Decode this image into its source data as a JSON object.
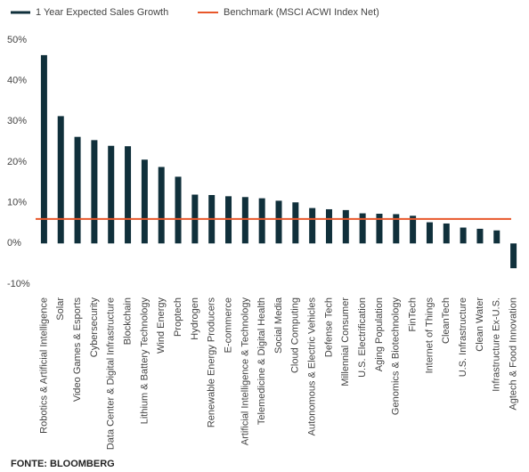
{
  "chart_data": {
    "type": "bar",
    "categories": [
      "Robotics & Artificial Intelligence",
      "Solar",
      "Video Games & Esports",
      "Cybersecurity",
      "Data Center & Digital Infrastructure",
      "Blockchain",
      "Lithium & Battery Technology",
      "Wind Energy",
      "Proptech",
      "Hydrogen",
      "Renewable Energy Producers",
      "E-commerce",
      "Artificial Intelligence & Technology",
      "Telemedicine & Digital Health",
      "Social Media",
      "Cloud Computing",
      "Autonomous & Electric Vehicles",
      "Defense Tech",
      "Millennial Consumer",
      "U.S. Electrification",
      "Aging Population",
      "Genomics & Biotechnology",
      "FinTech",
      "Internet of Things",
      "CleanTech",
      "U.S. Infrastructure",
      "Clean Water",
      "Infrastructure Ex-U.S.",
      "Agtech & Food Innovation"
    ],
    "series": [
      {
        "name": "1 Year Expected Sales Growth",
        "color": "#10303b",
        "values": [
          46.3,
          31.3,
          26.2,
          25.4,
          24.0,
          23.9,
          20.6,
          18.8,
          16.4,
          12.0,
          11.9,
          11.6,
          11.4,
          11.1,
          10.5,
          10.1,
          8.7,
          8.4,
          8.2,
          7.4,
          7.3,
          7.2,
          6.8,
          5.2,
          4.9,
          3.9,
          3.6,
          3.2,
          -6.1
        ]
      }
    ],
    "benchmark": {
      "name": "Benchmark (MSCI ACWI Index Net)",
      "color": "#e8572a",
      "value": 6.0
    },
    "ylim": [
      -10,
      50
    ],
    "yticks": [
      {
        "value": -10,
        "label": "-10%"
      },
      {
        "value": 0,
        "label": "0%"
      },
      {
        "value": 10,
        "label": "10%"
      },
      {
        "value": 20,
        "label": "20%"
      },
      {
        "value": 30,
        "label": "30%"
      },
      {
        "value": 40,
        "label": "40%"
      },
      {
        "value": 50,
        "label": "50%"
      }
    ],
    "source": "FONTE: BLOOMBERG"
  }
}
